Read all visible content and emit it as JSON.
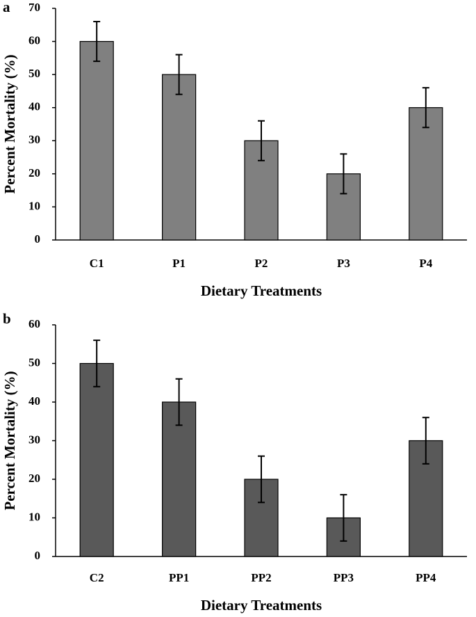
{
  "chart_data": [
    {
      "type": "bar",
      "label": "a",
      "x_label": "Dietary Treatments",
      "y_label": "Percent  Mortality (%)",
      "categories": [
        "C1",
        "P1",
        "P2",
        "P3",
        "P4"
      ],
      "values": [
        60,
        50,
        30,
        20,
        40
      ],
      "errors": [
        6,
        6,
        6,
        6,
        6
      ],
      "color": "#808080",
      "ylim": [
        0,
        70
      ],
      "yticks": [
        0,
        10,
        20,
        30,
        40,
        50,
        60,
        70
      ],
      "grid": false
    },
    {
      "type": "bar",
      "label": "b",
      "x_label": "Dietary Treatments",
      "y_label": "Percent  Mortality (%)",
      "categories": [
        "C2",
        "PP1",
        "PP2",
        "PP3",
        "PP4"
      ],
      "values": [
        50,
        40,
        20,
        10,
        30
      ],
      "errors": [
        6,
        6,
        6,
        6,
        6
      ],
      "color": "#595959",
      "ylim": [
        0,
        60
      ],
      "yticks": [
        0,
        10,
        20,
        30,
        40,
        50,
        60
      ],
      "grid": false
    }
  ]
}
